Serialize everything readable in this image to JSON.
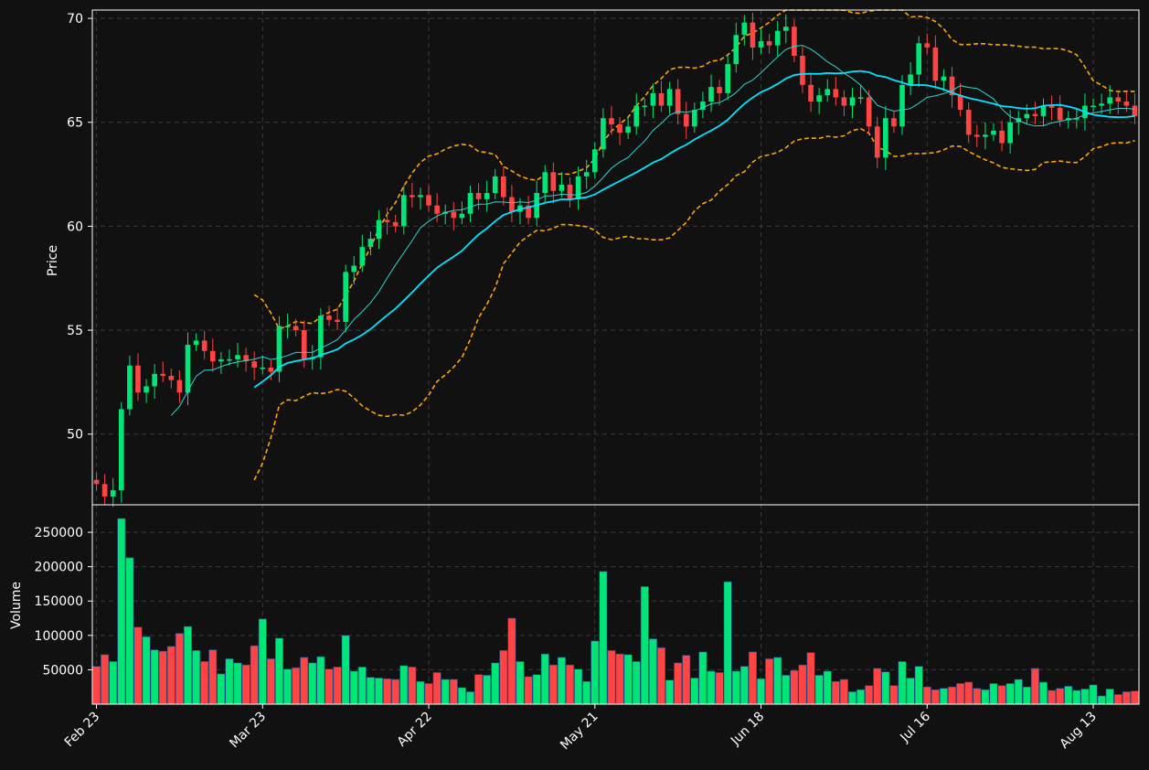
{
  "chart_data": [
    {
      "type": "candlestick",
      "panel": "price",
      "ylabel": "Price",
      "ylim": [
        46.6,
        70.4
      ],
      "yticks": [
        "50",
        "55",
        "60",
        "65",
        "70"
      ],
      "x_ticks": [
        "Feb 23",
        "Mar 23",
        "Apr 22",
        "May 21",
        "Jun 18",
        "Jul 16",
        "Aug 13"
      ],
      "grid": true,
      "colors": {
        "up": "#00e676",
        "down": "#ff4444",
        "ma_fast": "#2dd4cf",
        "ma_slow": "#00e5ff",
        "band": "#ffa500",
        "grid": "#3a3a3a",
        "background": "#111111"
      },
      "close_series_anchors": [
        [
          0,
          47.6
        ],
        [
          1,
          47.0
        ],
        [
          2,
          47.3
        ],
        [
          3,
          51.2
        ],
        [
          4,
          53.3
        ],
        [
          5,
          52.0
        ],
        [
          6,
          52.3
        ],
        [
          7,
          52.9
        ],
        [
          8,
          52.8
        ],
        [
          9,
          52.6
        ],
        [
          10,
          52.0
        ],
        [
          11,
          54.3
        ],
        [
          12,
          54.5
        ],
        [
          13,
          54.0
        ],
        [
          14,
          53.5
        ],
        [
          15,
          53.6
        ],
        [
          16,
          53.6
        ],
        [
          17,
          53.8
        ],
        [
          18,
          53.5
        ],
        [
          19,
          53.2
        ],
        [
          20,
          53.2
        ],
        [
          21,
          53.0
        ],
        [
          22,
          55.2
        ],
        [
          23,
          55.2
        ],
        [
          24,
          55.0
        ],
        [
          25,
          53.6
        ],
        [
          26,
          53.7
        ],
        [
          27,
          55.7
        ],
        [
          28,
          55.5
        ],
        [
          29,
          55.4
        ],
        [
          30,
          57.8
        ],
        [
          31,
          58.1
        ],
        [
          32,
          59.0
        ],
        [
          33,
          59.4
        ],
        [
          34,
          60.3
        ],
        [
          35,
          60.2
        ],
        [
          36,
          60.0
        ],
        [
          37,
          61.5
        ],
        [
          38,
          61.4
        ],
        [
          39,
          61.5
        ],
        [
          40,
          61.0
        ],
        [
          41,
          60.6
        ],
        [
          42,
          60.7
        ],
        [
          43,
          60.4
        ],
        [
          44,
          60.6
        ],
        [
          45,
          61.6
        ],
        [
          46,
          61.3
        ],
        [
          47,
          61.6
        ],
        [
          48,
          62.4
        ],
        [
          49,
          61.4
        ],
        [
          50,
          60.7
        ],
        [
          51,
          61.0
        ],
        [
          52,
          60.4
        ],
        [
          53,
          61.6
        ],
        [
          54,
          62.6
        ],
        [
          55,
          61.7
        ],
        [
          56,
          62.0
        ],
        [
          57,
          61.3
        ],
        [
          58,
          62.4
        ],
        [
          59,
          62.6
        ],
        [
          60,
          63.7
        ],
        [
          61,
          65.2
        ],
        [
          62,
          64.9
        ],
        [
          63,
          64.5
        ],
        [
          64,
          64.8
        ],
        [
          65,
          65.8
        ],
        [
          66,
          65.8
        ],
        [
          67,
          66.4
        ],
        [
          68,
          65.8
        ],
        [
          69,
          66.6
        ],
        [
          70,
          65.4
        ],
        [
          71,
          64.8
        ],
        [
          72,
          65.6
        ],
        [
          73,
          66.0
        ],
        [
          74,
          66.7
        ],
        [
          75,
          66.4
        ],
        [
          76,
          67.8
        ],
        [
          77,
          69.2
        ],
        [
          78,
          69.8
        ],
        [
          79,
          68.6
        ],
        [
          80,
          68.9
        ],
        [
          81,
          68.7
        ],
        [
          82,
          69.4
        ],
        [
          83,
          69.6
        ],
        [
          84,
          68.2
        ],
        [
          85,
          66.8
        ],
        [
          86,
          66.0
        ],
        [
          87,
          66.3
        ],
        [
          88,
          66.6
        ],
        [
          89,
          66.2
        ],
        [
          90,
          65.8
        ],
        [
          91,
          66.2
        ],
        [
          92,
          66.2
        ],
        [
          93,
          64.8
        ],
        [
          94,
          63.3
        ],
        [
          95,
          65.2
        ],
        [
          96,
          64.8
        ],
        [
          97,
          66.8
        ],
        [
          98,
          67.3
        ],
        [
          99,
          68.8
        ],
        [
          100,
          68.6
        ],
        [
          101,
          67.0
        ],
        [
          102,
          67.2
        ],
        [
          103,
          66.3
        ],
        [
          104,
          65.6
        ],
        [
          105,
          64.4
        ],
        [
          106,
          64.3
        ],
        [
          107,
          64.4
        ],
        [
          108,
          64.6
        ],
        [
          109,
          64.0
        ],
        [
          110,
          65.0
        ],
        [
          111,
          65.2
        ],
        [
          112,
          65.4
        ],
        [
          113,
          65.3
        ],
        [
          114,
          65.8
        ],
        [
          115,
          65.7
        ],
        [
          116,
          65.1
        ],
        [
          117,
          65.2
        ],
        [
          118,
          65.2
        ],
        [
          119,
          65.8
        ],
        [
          120,
          65.8
        ],
        [
          121,
          65.9
        ],
        [
          122,
          66.2
        ],
        [
          123,
          66.0
        ],
        [
          124,
          65.8
        ],
        [
          125,
          65.3
        ]
      ]
    },
    {
      "type": "bar",
      "panel": "volume",
      "ylabel": "Volume",
      "ylim": [
        0,
        290000
      ],
      "yticks": [
        "50000",
        "100000",
        "150000",
        "200000",
        "250000"
      ],
      "grid": true,
      "volume_anchors": [
        [
          0,
          55000
        ],
        [
          1,
          72000
        ],
        [
          2,
          62000
        ],
        [
          3,
          270000
        ],
        [
          4,
          213000
        ],
        [
          5,
          112000
        ],
        [
          6,
          98000
        ],
        [
          7,
          79000
        ],
        [
          8,
          77000
        ],
        [
          9,
          84000
        ],
        [
          10,
          103000
        ],
        [
          11,
          113000
        ],
        [
          12,
          78000
        ],
        [
          13,
          62000
        ],
        [
          14,
          79000
        ],
        [
          15,
          44000
        ],
        [
          16,
          66000
        ],
        [
          17,
          60000
        ],
        [
          18,
          57000
        ],
        [
          19,
          85000
        ],
        [
          20,
          124000
        ],
        [
          21,
          66000
        ],
        [
          22,
          96000
        ],
        [
          23,
          51000
        ],
        [
          24,
          53000
        ],
        [
          25,
          68000
        ],
        [
          26,
          60000
        ],
        [
          27,
          69000
        ],
        [
          28,
          51000
        ],
        [
          29,
          54000
        ],
        [
          30,
          100000
        ],
        [
          31,
          48000
        ],
        [
          32,
          54000
        ],
        [
          33,
          39000
        ],
        [
          34,
          38000
        ],
        [
          35,
          37000
        ],
        [
          36,
          36000
        ],
        [
          37,
          56000
        ],
        [
          38,
          54000
        ],
        [
          39,
          33000
        ],
        [
          40,
          30000
        ],
        [
          41,
          46000
        ],
        [
          42,
          36000
        ],
        [
          43,
          36000
        ],
        [
          44,
          24000
        ],
        [
          45,
          18000
        ],
        [
          46,
          43000
        ],
        [
          47,
          42000
        ],
        [
          48,
          60000
        ],
        [
          49,
          78000
        ],
        [
          50,
          125000
        ],
        [
          51,
          62000
        ],
        [
          52,
          40000
        ],
        [
          53,
          43000
        ],
        [
          54,
          73000
        ],
        [
          55,
          57000
        ],
        [
          56,
          68000
        ],
        [
          57,
          57000
        ],
        [
          58,
          51000
        ],
        [
          59,
          33000
        ],
        [
          60,
          92000
        ],
        [
          61,
          193000
        ],
        [
          62,
          78000
        ],
        [
          63,
          73000
        ],
        [
          64,
          72000
        ],
        [
          65,
          62000
        ],
        [
          66,
          171000
        ],
        [
          67,
          95000
        ],
        [
          68,
          82000
        ],
        [
          69,
          35000
        ],
        [
          70,
          60000
        ],
        [
          71,
          71000
        ],
        [
          72,
          38000
        ],
        [
          73,
          76000
        ],
        [
          74,
          48000
        ],
        [
          75,
          46000
        ],
        [
          76,
          178000
        ],
        [
          77,
          48000
        ],
        [
          78,
          55000
        ],
        [
          79,
          76000
        ],
        [
          80,
          37000
        ],
        [
          81,
          66000
        ],
        [
          82,
          68000
        ],
        [
          83,
          42000
        ],
        [
          84,
          49000
        ],
        [
          85,
          57000
        ],
        [
          86,
          75000
        ],
        [
          87,
          42000
        ],
        [
          88,
          48000
        ],
        [
          89,
          33000
        ],
        [
          90,
          36000
        ],
        [
          91,
          18000
        ],
        [
          92,
          21000
        ],
        [
          93,
          27000
        ],
        [
          94,
          52000
        ],
        [
          95,
          47000
        ],
        [
          96,
          27000
        ],
        [
          97,
          62000
        ],
        [
          98,
          38000
        ],
        [
          99,
          55000
        ],
        [
          100,
          25000
        ],
        [
          101,
          21000
        ],
        [
          102,
          23000
        ],
        [
          103,
          25000
        ],
        [
          104,
          30000
        ],
        [
          105,
          32000
        ],
        [
          106,
          23000
        ],
        [
          107,
          21000
        ],
        [
          108,
          30000
        ],
        [
          109,
          27000
        ],
        [
          110,
          30000
        ],
        [
          111,
          36000
        ],
        [
          112,
          25000
        ],
        [
          113,
          52000
        ],
        [
          114,
          32000
        ],
        [
          115,
          20000
        ],
        [
          116,
          23000
        ],
        [
          117,
          26000
        ],
        [
          118,
          20000
        ],
        [
          119,
          22000
        ],
        [
          120,
          28000
        ],
        [
          121,
          12000
        ],
        [
          122,
          22000
        ],
        [
          123,
          14000
        ],
        [
          124,
          18000
        ],
        [
          125,
          19000
        ]
      ]
    }
  ]
}
